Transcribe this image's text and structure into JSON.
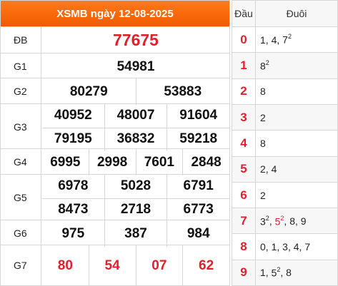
{
  "title": "XSMB ngày 12-08-2025",
  "prizes": [
    {
      "label": "ĐB",
      "lines": [
        [
          "77675"
        ]
      ],
      "style": "red"
    },
    {
      "label": "G1",
      "lines": [
        [
          "54981"
        ]
      ],
      "style": "normal"
    },
    {
      "label": "G2",
      "lines": [
        [
          "80279",
          "53883"
        ]
      ],
      "style": "normal"
    },
    {
      "label": "G3",
      "lines": [
        [
          "40952",
          "48007",
          "91604"
        ],
        [
          "79195",
          "36832",
          "59218"
        ]
      ],
      "style": "normal"
    },
    {
      "label": "G4",
      "lines": [
        [
          "6995",
          "2998",
          "7601",
          "2848"
        ]
      ],
      "style": "normal"
    },
    {
      "label": "G5",
      "lines": [
        [
          "6978",
          "5028",
          "6791"
        ],
        [
          "8473",
          "2718",
          "6773"
        ]
      ],
      "style": "normal"
    },
    {
      "label": "G6",
      "lines": [
        [
          "975",
          "387",
          "984"
        ]
      ],
      "style": "normal"
    },
    {
      "label": "G7",
      "lines": [
        [
          "80",
          "54",
          "07",
          "62"
        ]
      ],
      "style": "red"
    }
  ],
  "dau_duoi": {
    "col_dau": "Đầu",
    "col_duoi": "Đuôi",
    "rows": [
      {
        "dau": "0",
        "duoi": [
          {
            "t": "1"
          },
          {
            "t": "4"
          },
          {
            "t": "7",
            "sup": "2"
          }
        ]
      },
      {
        "dau": "1",
        "duoi": [
          {
            "t": "8",
            "sup": "2"
          }
        ]
      },
      {
        "dau": "2",
        "duoi": [
          {
            "t": "8"
          }
        ]
      },
      {
        "dau": "3",
        "duoi": [
          {
            "t": "2"
          }
        ]
      },
      {
        "dau": "4",
        "duoi": [
          {
            "t": "8"
          }
        ]
      },
      {
        "dau": "5",
        "duoi": [
          {
            "t": "2"
          },
          {
            "t": "4"
          }
        ]
      },
      {
        "dau": "6",
        "duoi": [
          {
            "t": "2"
          }
        ]
      },
      {
        "dau": "7",
        "duoi": [
          {
            "t": "3",
            "sup": "2"
          },
          {
            "t": "5",
            "sup": "2",
            "red": true
          },
          {
            "t": "8"
          },
          {
            "t": "9"
          }
        ]
      },
      {
        "dau": "8",
        "duoi": [
          {
            "t": "0"
          },
          {
            "t": "1"
          },
          {
            "t": "3"
          },
          {
            "t": "4"
          },
          {
            "t": "7"
          }
        ]
      },
      {
        "dau": "9",
        "duoi": [
          {
            "t": "1"
          },
          {
            "t": "5",
            "sup": "2"
          },
          {
            "t": "8"
          }
        ]
      }
    ]
  },
  "colors": {
    "header_bg": "#f25a00",
    "highlight": "#e0202c",
    "border": "#d6d6d6"
  }
}
